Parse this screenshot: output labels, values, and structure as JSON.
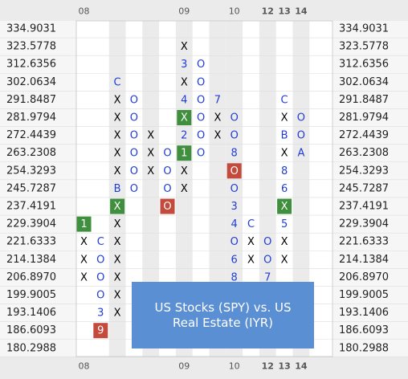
{
  "overlay": {
    "line1": "US Stocks (SPY) vs. US",
    "line2": "Real Estate (IYR)"
  },
  "chart_data": {
    "type": "point-and-figure",
    "title": "US Stocks (SPY) vs. US Real Estate (IYR)",
    "price_levels": [
      "334.9031",
      "323.5778",
      "312.6356",
      "302.0634",
      "291.8487",
      "281.9794",
      "272.4439",
      "263.2308",
      "254.3293",
      "245.7287",
      "237.4191",
      "229.3904",
      "221.6333",
      "214.1384",
      "206.8970",
      "199.9005",
      "193.1406",
      "186.6093",
      "180.2988"
    ],
    "year_labels": [
      {
        "label": "08",
        "col": 0
      },
      {
        "label": "09",
        "col": 6
      },
      {
        "label": "10",
        "col": 9
      },
      {
        "label": "12",
        "col": 11
      },
      {
        "label": "13",
        "col": 12
      },
      {
        "label": "14",
        "col": 13
      }
    ],
    "shaded_columns": [
      2,
      4,
      6,
      8,
      9,
      11,
      13
    ],
    "columns": [
      {
        "col": 0,
        "type": "X",
        "top": 11,
        "bottom": 14,
        "marks": {
          "11": "1"
        }
      },
      {
        "col": 1,
        "type": "O",
        "top": 12,
        "bottom": 17,
        "marks": {
          "12": "C",
          "16": "3",
          "17": "9"
        }
      },
      {
        "col": 2,
        "type": "X",
        "top": 3,
        "bottom": 16,
        "marks": {
          "3": "C",
          "9": "B",
          "10": "X*"
        }
      },
      {
        "col": 3,
        "type": "O",
        "top": 4,
        "bottom": 9
      },
      {
        "col": 4,
        "type": "X",
        "top": 6,
        "bottom": 8
      },
      {
        "col": 5,
        "type": "O",
        "top": 7,
        "bottom": 10,
        "marks": {
          "10": "O*"
        }
      },
      {
        "col": 6,
        "type": "X",
        "top": 1,
        "bottom": 9,
        "marks": {
          "2": "3",
          "4": "4",
          "5": "X*",
          "6": "2",
          "7": "1"
        }
      },
      {
        "col": 7,
        "type": "O",
        "top": 2,
        "bottom": 7
      },
      {
        "col": 8,
        "type": "X",
        "top": 4,
        "bottom": 6,
        "marks": {
          "4": "7"
        }
      },
      {
        "col": 9,
        "type": "O",
        "top": 5,
        "bottom": 14,
        "marks": {
          "7": "8",
          "8": "O*",
          "10": "3",
          "11": "4",
          "13": "6",
          "14": "8"
        }
      },
      {
        "col": 10,
        "type": "X",
        "top": 11,
        "bottom": 13,
        "marks": {
          "11": "C"
        }
      },
      {
        "col": 11,
        "type": "O",
        "top": 12,
        "bottom": 14,
        "marks": {
          "14": "7"
        }
      },
      {
        "col": 12,
        "type": "X",
        "top": 4,
        "bottom": 13,
        "marks": {
          "4": "C",
          "6": "B",
          "8": "8",
          "9": "6",
          "10": "X*",
          "11": "5"
        }
      },
      {
        "col": 13,
        "type": "O",
        "top": 5,
        "bottom": 7,
        "marks": {
          "7": "A"
        }
      }
    ],
    "colors": {
      "x_mark": "#000000",
      "o_mark": "#1f3dd6",
      "highlight_x": "#3f8f3f",
      "highlight_o": "#c44a3c",
      "highlight_1": "#3f8f3f",
      "highlight_9": "#c44a3c",
      "shade": "#ebebeb",
      "axis_bg": "#ebebeb",
      "axis_text": "#222222",
      "grid": "#dddddd"
    }
  }
}
